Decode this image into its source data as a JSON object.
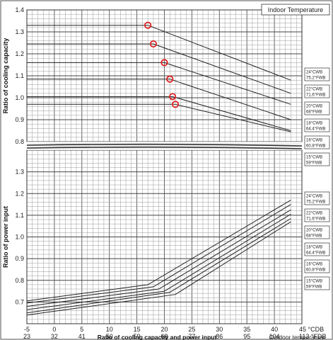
{
  "chart_data": [
    {
      "type": "line",
      "title": "Indoor Temperature",
      "ylabel": "Ratio of cooling capacity",
      "ylim": [
        0.8,
        1.4
      ],
      "y_ticks": [
        "1.4",
        "1.3",
        "1.2",
        "1.1",
        "1.0",
        "0.9",
        "0.8"
      ],
      "xlim": [
        -5,
        45
      ],
      "grid": true,
      "series": [
        {
          "name": [
            "24°CWB",
            "75.2°FWB"
          ],
          "points": [
            [
              17,
              1.33
            ],
            [
              43,
              1.08
            ]
          ]
        },
        {
          "name": [
            "22°CWB",
            "71.6°FWB"
          ],
          "points": [
            [
              18,
              1.245
            ],
            [
              43,
              1.02
            ]
          ]
        },
        {
          "name": [
            "20°CWB",
            "68°FWB"
          ],
          "points": [
            [
              20,
              1.16
            ],
            [
              43,
              0.97
            ]
          ]
        },
        {
          "name": [
            "18°CWB",
            "64.4°FWB"
          ],
          "points": [
            [
              21,
              1.085
            ],
            [
              43,
              0.9
            ]
          ]
        },
        {
          "name": [
            "16°CWB",
            "60.8°FWB"
          ],
          "points": [
            [
              21.5,
              1.005
            ],
            [
              43,
              0.85
            ]
          ]
        },
        {
          "name": [
            "15°CWB",
            "59°FWB"
          ],
          "points": [
            [
              22,
              0.97
            ],
            [
              43,
              0.845
            ]
          ]
        }
      ],
      "markers": [
        [
          17,
          1.33
        ],
        [
          18,
          1.245
        ],
        [
          20,
          1.16
        ],
        [
          21,
          1.085
        ],
        [
          21.5,
          1.005
        ],
        [
          22,
          0.97
        ]
      ],
      "marker_color": "#e02020"
    },
    {
      "type": "line",
      "ylabel": "Ratio of power input",
      "ylim": [
        0.6,
        1.4
      ],
      "y_ticks": [
        "1.3",
        "1.2",
        "1.1",
        "1.0",
        "0.9",
        "0.8",
        "0.7"
      ],
      "xlim": [
        -5,
        45
      ],
      "x_ticks_c": [
        "-5",
        "0",
        "5",
        "10",
        "15",
        "20",
        "25",
        "30",
        "35",
        "40",
        "45 °CDB"
      ],
      "x_ticks_f": [
        "23",
        "32",
        "41",
        "50",
        "59",
        "68",
        "77",
        "86",
        "95",
        "104",
        "113 °FDB"
      ],
      "xlabel": "Ratio of cooling capacity and power input",
      "xlabel_right": "Outdoor temperature",
      "grid": true,
      "series": [
        {
          "name": [
            "24°CWB",
            "75.2°FWB"
          ],
          "points": [
            [
              -5,
              0.705
            ],
            [
              17,
              0.78
            ],
            [
              43,
              1.17
            ]
          ]
        },
        {
          "name": [
            "22°CWB",
            "71.6°FWB"
          ],
          "points": [
            [
              -5,
              0.695
            ],
            [
              18,
              0.77
            ],
            [
              43,
              1.15
            ]
          ]
        },
        {
          "name": [
            "20°CWB",
            "68°FWB"
          ],
          "points": [
            [
              -5,
              0.68
            ],
            [
              19,
              0.76
            ],
            [
              43,
              1.125
            ]
          ]
        },
        {
          "name": [
            "18°CWB",
            "64.4°FWB"
          ],
          "points": [
            [
              -5,
              0.665
            ],
            [
              20,
              0.75
            ],
            [
              43,
              1.105
            ]
          ]
        },
        {
          "name": [
            "16°CWB",
            "60.8°FWB"
          ],
          "points": [
            [
              -5,
              0.65
            ],
            [
              21,
              0.745
            ],
            [
              43,
              1.085
            ]
          ]
        },
        {
          "name": [
            "15°CWB",
            "59°FWB"
          ],
          "points": [
            [
              -5,
              0.64
            ],
            [
              22,
              0.735
            ],
            [
              43,
              1.07
            ]
          ]
        }
      ]
    }
  ]
}
